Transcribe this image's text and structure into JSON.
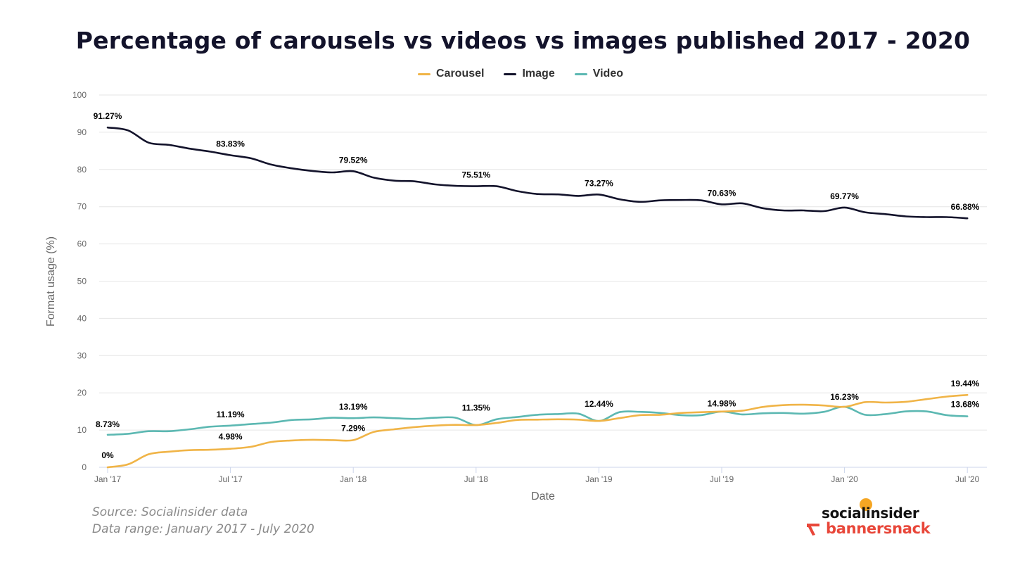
{
  "chart_data": {
    "type": "line",
    "title": "Percentage of carousels vs videos vs images published 2017 - 2020",
    "xlabel": "Date",
    "ylabel": "Format usage (%)",
    "ylim": [
      0,
      100
    ],
    "yticks": [
      0,
      10,
      20,
      30,
      40,
      50,
      60,
      70,
      80,
      90,
      100
    ],
    "grid": true,
    "legend_position": "top-center",
    "x_tick_labels": [
      "Jan '17",
      "Jul '17",
      "Jan '18",
      "Jul '18",
      "Jan '19",
      "Jul '19",
      "Jan '20",
      "Jul '20"
    ],
    "x_dates": [
      "2017-01",
      "2017-02",
      "2017-03",
      "2017-04",
      "2017-05",
      "2017-06",
      "2017-07",
      "2017-08",
      "2017-09",
      "2017-10",
      "2017-11",
      "2017-12",
      "2018-01",
      "2018-02",
      "2018-03",
      "2018-04",
      "2018-05",
      "2018-06",
      "2018-07",
      "2018-08",
      "2018-09",
      "2018-10",
      "2018-11",
      "2018-12",
      "2019-01",
      "2019-02",
      "2019-03",
      "2019-04",
      "2019-05",
      "2019-06",
      "2019-07",
      "2019-08",
      "2019-09",
      "2019-10",
      "2019-11",
      "2019-12",
      "2020-01",
      "2020-02",
      "2020-03",
      "2020-04",
      "2020-05",
      "2020-06",
      "2020-07"
    ],
    "series": [
      {
        "name": "Carousel",
        "color": "#f0b447",
        "values": [
          0,
          0.8,
          3.5,
          4.2,
          4.6,
          4.7,
          4.98,
          5.5,
          6.8,
          7.2,
          7.4,
          7.3,
          7.29,
          9.5,
          10.2,
          10.8,
          11.2,
          11.4,
          11.35,
          11.9,
          12.7,
          12.8,
          12.9,
          12.8,
          12.44,
          13.2,
          14.0,
          14.1,
          14.6,
          14.8,
          14.98,
          15.2,
          16.2,
          16.7,
          16.8,
          16.6,
          16.23,
          17.5,
          17.4,
          17.6,
          18.3,
          19.0,
          19.44
        ],
        "labels": [
          {
            "i": 0,
            "text": "0%"
          },
          {
            "i": 6,
            "text": "4.98%"
          },
          {
            "i": 12,
            "text": "7.29%"
          },
          {
            "i": 42,
            "text": "19.44%"
          }
        ]
      },
      {
        "name": "Image",
        "color": "#13132b",
        "values": [
          91.27,
          90.5,
          87.2,
          86.6,
          85.6,
          84.8,
          83.83,
          83.0,
          81.3,
          80.3,
          79.6,
          79.2,
          79.52,
          77.8,
          77.0,
          76.8,
          76.0,
          75.6,
          75.51,
          75.5,
          74.2,
          73.4,
          73.3,
          72.9,
          73.27,
          72.0,
          71.3,
          71.7,
          71.8,
          71.7,
          70.63,
          70.9,
          69.6,
          69.0,
          69.0,
          68.8,
          69.77,
          68.5,
          68.0,
          67.4,
          67.2,
          67.2,
          66.88
        ],
        "labels": [
          {
            "i": 0,
            "text": "91.27%"
          },
          {
            "i": 6,
            "text": "83.83%"
          },
          {
            "i": 12,
            "text": "79.52%"
          },
          {
            "i": 18,
            "text": "75.51%"
          },
          {
            "i": 24,
            "text": "73.27%"
          },
          {
            "i": 30,
            "text": "70.63%"
          },
          {
            "i": 36,
            "text": "69.77%"
          },
          {
            "i": 42,
            "text": "66.88%"
          }
        ]
      },
      {
        "name": "Video",
        "color": "#5cb8b2",
        "values": [
          8.73,
          9.0,
          9.7,
          9.7,
          10.2,
          10.9,
          11.19,
          11.6,
          12.0,
          12.7,
          12.9,
          13.3,
          13.19,
          13.4,
          13.2,
          13.0,
          13.3,
          13.3,
          11.35,
          12.9,
          13.5,
          14.1,
          14.3,
          14.4,
          12.44,
          14.8,
          14.9,
          14.6,
          14.0,
          14.0,
          14.98,
          14.2,
          14.5,
          14.6,
          14.4,
          14.9,
          16.23,
          14.1,
          14.3,
          15.0,
          15.0,
          14.0,
          13.68
        ],
        "labels": [
          {
            "i": 0,
            "text": "8.73%"
          },
          {
            "i": 6,
            "text": "11.19%"
          },
          {
            "i": 12,
            "text": "13.19%"
          },
          {
            "i": 42,
            "text": "13.68%"
          }
        ]
      }
    ],
    "floating_labels": [
      {
        "x": "2018-07",
        "y": 13.3,
        "text": "11.35%"
      },
      {
        "x": "2019-01",
        "y": 14.4,
        "text": "12.44%"
      },
      {
        "x": "2019-07",
        "y": 14.5,
        "text": "14.98%"
      },
      {
        "x": "2020-01",
        "y": 16.3,
        "text": "16.23%"
      }
    ]
  },
  "footer": {
    "source": "Source: Socialinsider data",
    "range": "Data range: January 2017 - July 2020"
  },
  "logos": {
    "socialinsider": "socialinsider",
    "bannersnack": "bannersnack"
  }
}
